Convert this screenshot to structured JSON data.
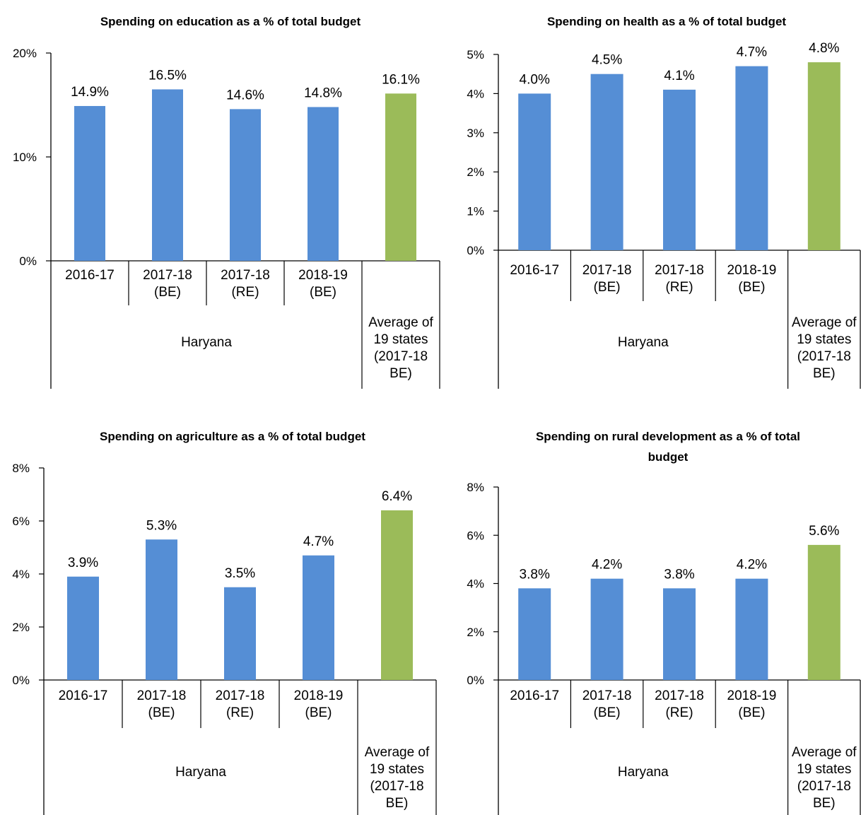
{
  "chart_data": [
    {
      "type": "bar",
      "title": "Spending on education as a % of total budget",
      "categories": [
        "2016-17",
        "2017-18 (BE)",
        "2017-18 (RE)",
        "2018-19 (BE)",
        "Average of 19 states (2017-18 BE)"
      ],
      "category_lines": [
        [
          "2016-17"
        ],
        [
          "2017-18",
          "(BE)"
        ],
        [
          "2017-18",
          "(RE)"
        ],
        [
          "2018-19",
          "(BE)"
        ],
        [
          "Average of",
          "19 states",
          "(2017-18",
          "BE)"
        ]
      ],
      "group_label": "Haryana",
      "values": [
        14.9,
        16.5,
        14.6,
        14.8,
        16.1
      ],
      "data_labels": [
        "14.9%",
        "16.5%",
        "14.6%",
        "14.8%",
        "16.1%"
      ],
      "ylim": [
        0,
        20
      ],
      "yticks": [
        "0%",
        "10%",
        "20%"
      ],
      "grid": false,
      "legend": "none"
    },
    {
      "type": "bar",
      "title": "Spending on health as a % of total budget",
      "categories": [
        "2016-17",
        "2017-18 (BE)",
        "2017-18 (RE)",
        "2018-19 (BE)",
        "Average of 19 states (2017-18 BE)"
      ],
      "category_lines": [
        [
          "2016-17"
        ],
        [
          "2017-18",
          "(BE)"
        ],
        [
          "2017-18",
          "(RE)"
        ],
        [
          "2018-19",
          "(BE)"
        ],
        [
          "Average of",
          "19 states",
          "(2017-18",
          "BE)"
        ]
      ],
      "group_label": "Haryana",
      "values": [
        4.0,
        4.5,
        4.1,
        4.7,
        4.8
      ],
      "data_labels": [
        "4.0%",
        "4.5%",
        "4.1%",
        "4.7%",
        "4.8%"
      ],
      "ylim": [
        0,
        5
      ],
      "yticks": [
        "0%",
        "1%",
        "2%",
        "3%",
        "4%",
        "5%"
      ],
      "grid": false,
      "legend": "none"
    },
    {
      "type": "bar",
      "title": "Spending on agriculture as a % of total budget",
      "categories": [
        "2016-17",
        "2017-18 (BE)",
        "2017-18 (RE)",
        "2018-19 (BE)",
        "Average of 19 states (2017-18 BE)"
      ],
      "category_lines": [
        [
          "2016-17"
        ],
        [
          "2017-18",
          "(BE)"
        ],
        [
          "2017-18",
          "(RE)"
        ],
        [
          "2018-19",
          "(BE)"
        ],
        [
          "Average of",
          "19 states",
          "(2017-18",
          "BE)"
        ]
      ],
      "group_label": "Haryana",
      "values": [
        3.9,
        5.3,
        3.5,
        4.7,
        6.4
      ],
      "data_labels": [
        "3.9%",
        "5.3%",
        "3.5%",
        "4.7%",
        "6.4%"
      ],
      "ylim": [
        0,
        8
      ],
      "yticks": [
        "0%",
        "2%",
        "4%",
        "6%",
        "8%"
      ],
      "grid": false,
      "legend": "none"
    },
    {
      "type": "bar",
      "title": "Spending on rural development as a % of total budget",
      "title_lines": [
        "Spending on rural development as a % of total",
        "budget"
      ],
      "categories": [
        "2016-17",
        "2017-18 (BE)",
        "2017-18 (RE)",
        "2018-19 (BE)",
        "Average of 19 states (2017-18 BE)"
      ],
      "category_lines": [
        [
          "2016-17"
        ],
        [
          "2017-18",
          "(BE)"
        ],
        [
          "2017-18",
          "(RE)"
        ],
        [
          "2018-19",
          "(BE)"
        ],
        [
          "Average of",
          "19 states",
          "(2017-18",
          "BE)"
        ]
      ],
      "group_label": "Haryana",
      "values": [
        3.8,
        4.2,
        3.8,
        4.2,
        5.6
      ],
      "data_labels": [
        "3.8%",
        "4.2%",
        "3.8%",
        "4.2%",
        "5.6%"
      ],
      "ylim": [
        0,
        8
      ],
      "yticks": [
        "0%",
        "2%",
        "4%",
        "6%",
        "8%"
      ],
      "grid": false,
      "legend": "none"
    }
  ],
  "colors": {
    "state_bar": "#558ED5",
    "average_bar": "#9BBB59",
    "axis": "#000000"
  }
}
